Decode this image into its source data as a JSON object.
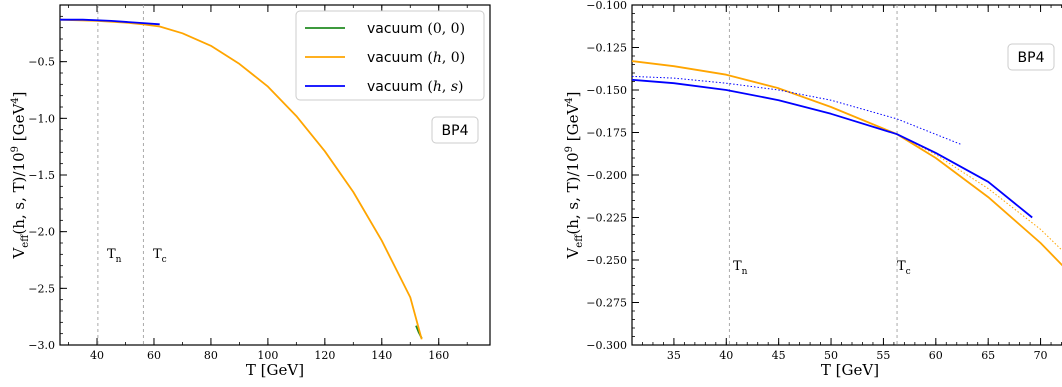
{
  "chart_data": [
    {
      "type": "line",
      "xlabel": "T [GeV]",
      "ylabel": "V_eff(h, s, T)/10^9 [GeV^4]",
      "xlim": [
        27,
        178
      ],
      "ylim": [
        -3.0,
        0.0
      ],
      "xticks": [
        "40",
        "60",
        "80",
        "100",
        "120",
        "140",
        "160"
      ],
      "yticks": [
        "−0.5",
        "−1.0",
        "−1.5",
        "−2.0",
        "−2.5",
        "−3.0"
      ],
      "box_label": "BP4",
      "legend_position": "top-right",
      "legend": [
        {
          "label": "vacuum (0, 0)",
          "color": "#228B22"
        },
        {
          "label": "vacuum (h, 0)",
          "color": "#FFA500"
        },
        {
          "label": "vacuum (h, s)",
          "color": "#0000FF"
        }
      ],
      "annotations": [
        {
          "label": "T_n",
          "x": 40.3
        },
        {
          "label": "T_c",
          "x": 56.3
        }
      ],
      "series": [
        {
          "name": "vacuum (0, 0)",
          "x": [
            152,
            153,
            154
          ],
          "y": [
            -2.83,
            -2.89,
            -2.94
          ],
          "color": "#228B22"
        },
        {
          "name": "vacuum (h, 0)",
          "x": [
            27,
            40,
            50,
            56.3,
            62,
            70,
            80,
            90,
            100,
            110,
            120,
            130,
            140,
            150,
            154
          ],
          "y": [
            -0.13,
            -0.14,
            -0.155,
            -0.17,
            -0.19,
            -0.25,
            -0.36,
            -0.52,
            -0.72,
            -0.98,
            -1.29,
            -1.65,
            -2.08,
            -2.58,
            -2.95
          ],
          "color": "#FFA500"
        },
        {
          "name": "vacuum (h, s)",
          "x": [
            27,
            35,
            45,
            56.3,
            62
          ],
          "y": [
            -0.13,
            -0.13,
            -0.14,
            -0.16,
            -0.17
          ],
          "color": "#0000FF"
        }
      ]
    },
    {
      "type": "line",
      "xlabel": "T [GeV]",
      "ylabel": "V_eff(h, s, T)/10^9 [GeV^4]",
      "xlim": [
        31,
        73
      ],
      "ylim": [
        -0.3,
        -0.1
      ],
      "xticks": [
        "35",
        "40",
        "45",
        "50",
        "55",
        "60",
        "65",
        "70"
      ],
      "yticks": [
        "−0.100",
        "−0.125",
        "−0.150",
        "−0.175",
        "−0.200",
        "−0.225",
        "−0.250",
        "−0.275",
        "−0.300"
      ],
      "box_label": "BP4",
      "annotations": [
        {
          "label": "T_n",
          "x": 40.3
        },
        {
          "label": "T_c",
          "x": 56.3
        }
      ],
      "series": [
        {
          "name": "vacuum (h, 0)",
          "style": "solid",
          "x": [
            31,
            35,
            40,
            45,
            50,
            56.3,
            60,
            65,
            70,
            73
          ],
          "y": [
            -0.133,
            -0.136,
            -0.141,
            -0.149,
            -0.16,
            -0.176,
            -0.19,
            -0.213,
            -0.24,
            -0.259
          ],
          "color": "#FFA500"
        },
        {
          "name": "vacuum (h, 0)",
          "style": "dotted",
          "x": [
            56.3,
            60,
            65,
            70,
            73
          ],
          "y": [
            -0.176,
            -0.188,
            -0.208,
            -0.232,
            -0.25
          ],
          "color": "#FFA500"
        },
        {
          "name": "vacuum (h, s)",
          "style": "solid",
          "x": [
            31,
            35,
            40,
            45,
            50,
            56.3,
            60,
            65,
            69.2
          ],
          "y": [
            -0.144,
            -0.146,
            -0.15,
            -0.156,
            -0.164,
            -0.176,
            -0.187,
            -0.204,
            -0.225
          ],
          "color": "#0000FF"
        },
        {
          "name": "vacuum (h, s)",
          "style": "dotted",
          "x": [
            31,
            35,
            40,
            45,
            50,
            56.3,
            62.4
          ],
          "y": [
            -0.142,
            -0.143,
            -0.146,
            -0.15,
            -0.156,
            -0.167,
            -0.182
          ],
          "color": "#0000FF"
        }
      ]
    }
  ]
}
